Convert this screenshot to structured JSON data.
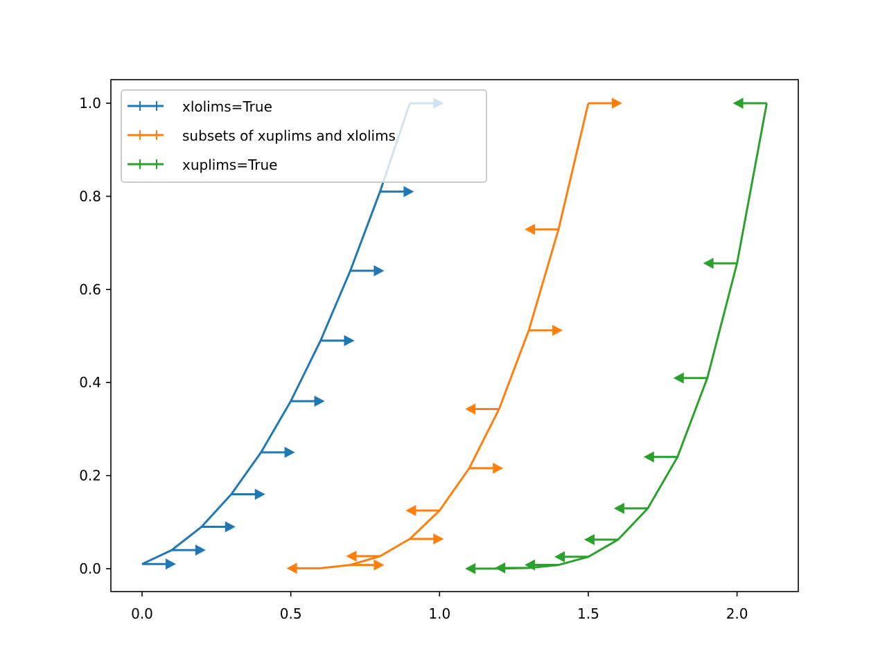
{
  "chart_data": {
    "type": "line",
    "title": "",
    "xlabel": "",
    "ylabel": "",
    "xlim": [
      -0.105,
      2.205
    ],
    "ylim": [
      -0.05,
      1.05
    ],
    "grid": false,
    "legend_position": "upper left",
    "x_ticks": [
      0.0,
      0.5,
      1.0,
      1.5,
      2.0
    ],
    "x_tick_labels": [
      "0.0",
      "0.5",
      "1.0",
      "1.5",
      "2.0"
    ],
    "y_ticks": [
      0.0,
      0.2,
      0.4,
      0.6,
      0.8,
      1.0
    ],
    "y_tick_labels": [
      "0.0",
      "0.2",
      "0.4",
      "0.6",
      "0.8",
      "1.0"
    ],
    "series": [
      {
        "name": "xlolims=True",
        "color": "#1f77b4",
        "x": [
          0.0,
          0.1,
          0.2,
          0.3,
          0.4,
          0.5,
          0.6,
          0.7,
          0.8,
          0.9
        ],
        "y": [
          0.01,
          0.04,
          0.09,
          0.16,
          0.25,
          0.36,
          0.49,
          0.64,
          0.81,
          1.0
        ],
        "xerr": 0.1,
        "limit_direction": [
          "right",
          "right",
          "right",
          "right",
          "right",
          "right",
          "right",
          "right",
          "right",
          "right"
        ]
      },
      {
        "name": "subsets of xuplims and xlolims",
        "color": "#ff7f0e",
        "x": [
          0.6,
          0.7,
          0.8,
          0.9,
          1.0,
          1.1,
          1.2,
          1.3,
          1.4,
          1.5
        ],
        "y": [
          0.001,
          0.008,
          0.027,
          0.064,
          0.125,
          0.216,
          0.343,
          0.512,
          0.729,
          1.0
        ],
        "xerr": 0.1,
        "limit_direction": [
          "left",
          "right",
          "left",
          "right",
          "left",
          "right",
          "left",
          "right",
          "left",
          "right"
        ]
      },
      {
        "name": "xuplims=True",
        "color": "#2ca02c",
        "x": [
          1.2,
          1.3,
          1.4,
          1.5,
          1.6,
          1.7,
          1.8,
          1.9,
          2.0,
          2.1
        ],
        "y": [
          0.0001,
          0.0016,
          0.0081,
          0.0256,
          0.0625,
          0.1296,
          0.2401,
          0.4096,
          0.6561,
          1.0
        ],
        "xerr": 0.1,
        "limit_direction": [
          "left",
          "left",
          "left",
          "left",
          "left",
          "left",
          "left",
          "left",
          "left",
          "left"
        ]
      }
    ]
  },
  "legend": {
    "items": [
      {
        "label": "xlolims=True",
        "color": "#1f77b4"
      },
      {
        "label": "subsets of xuplims and xlolims",
        "color": "#ff7f0e"
      },
      {
        "label": "xuplims=True",
        "color": "#2ca02c"
      }
    ]
  }
}
